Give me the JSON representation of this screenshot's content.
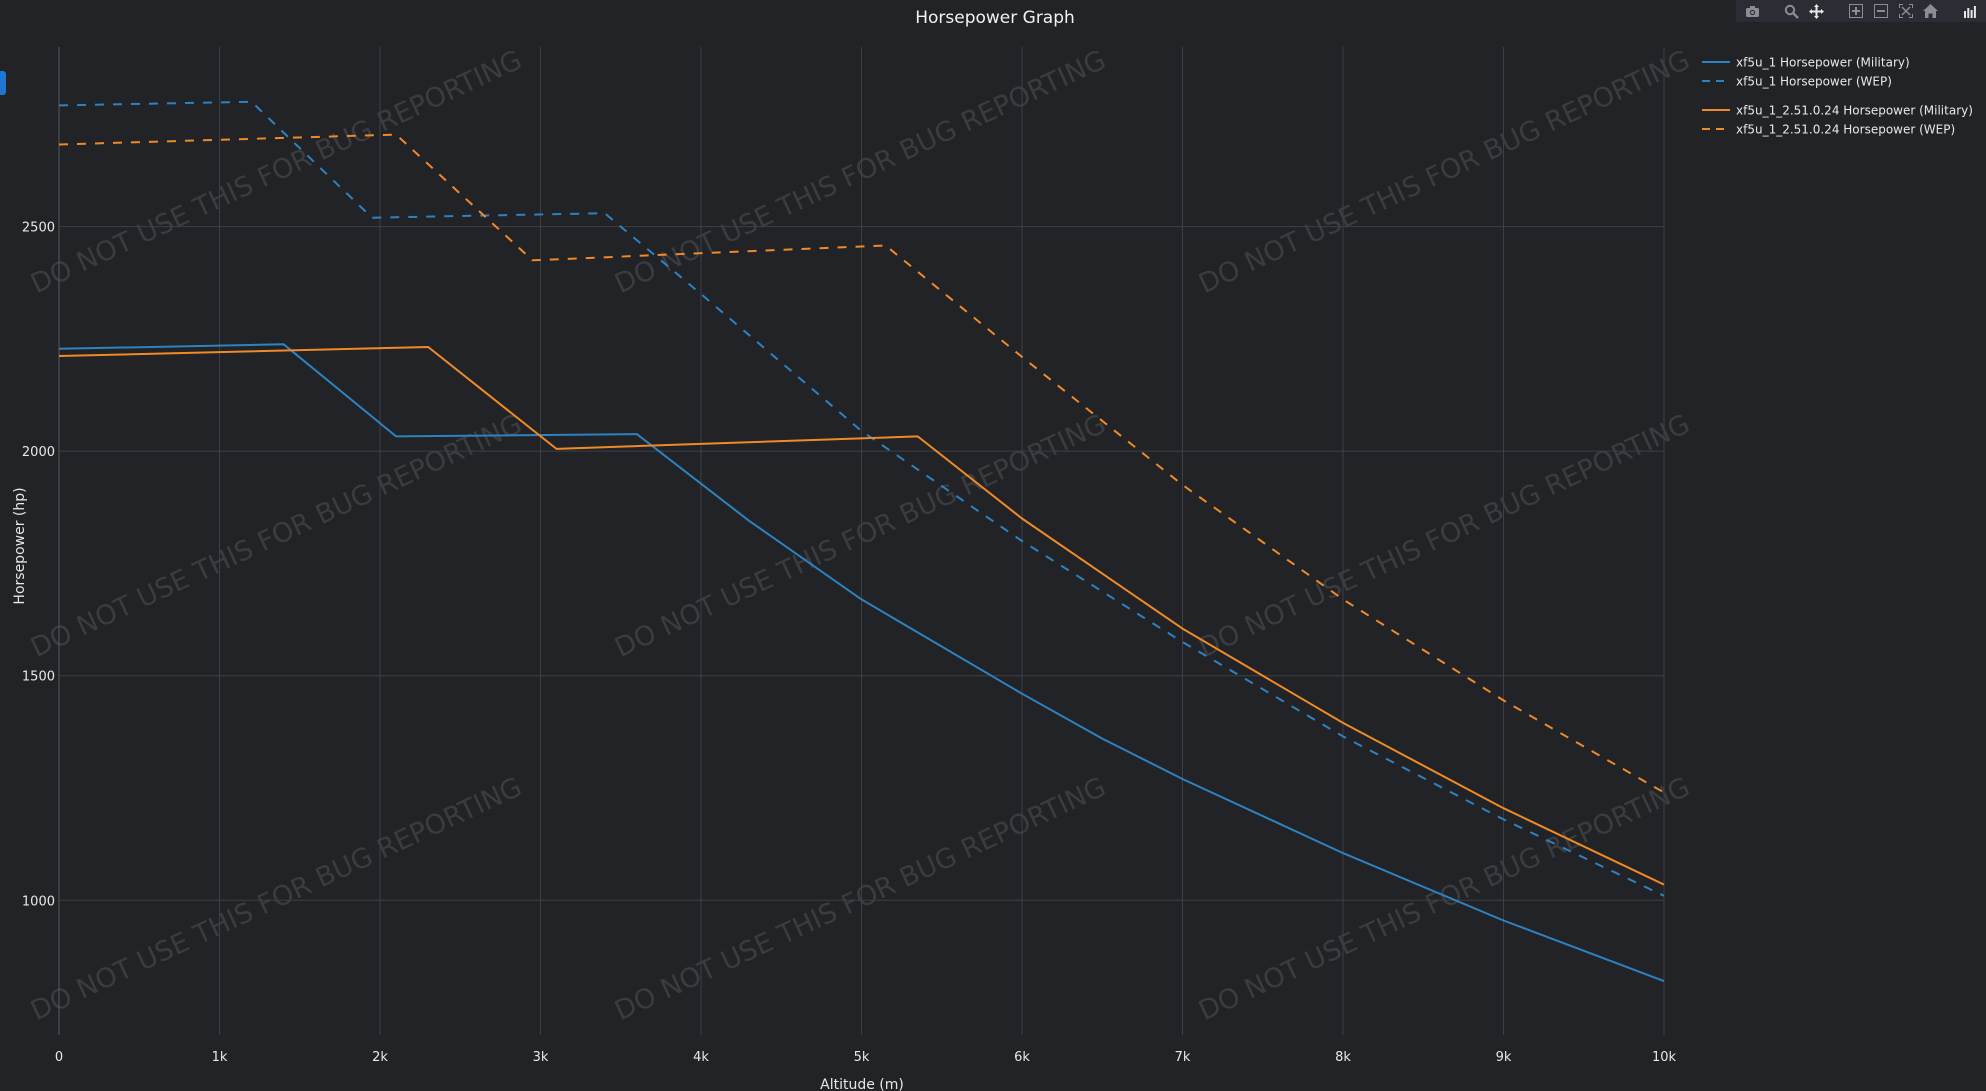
{
  "colors": {
    "background": "#212327",
    "grid": "#3d3f44",
    "axis_text": "#e8e8e8",
    "title_text": "#f2f2f2",
    "watermark": "#3a3c40",
    "blue": "#2e82c0",
    "orange": "#f08a28",
    "tab_accent": "#1f77d4"
  },
  "modebar": {
    "icons": [
      "camera-icon",
      "zoom-icon",
      "pan-icon",
      "zoom-in-icon",
      "zoom-out-icon",
      "autoscale-icon",
      "home-icon",
      "plotly-logo-icon"
    ]
  },
  "watermark_text": "DO NOT USE THIS FOR BUG REPORTING",
  "chart_data": {
    "type": "line",
    "title": "Horsepower Graph",
    "xlabel": "Altitude (m)",
    "ylabel": "Horsepower (hp)",
    "xlim": [
      0,
      10000
    ],
    "ylim": [
      700,
      2900
    ],
    "xticks": [
      0,
      1000,
      2000,
      3000,
      4000,
      5000,
      6000,
      7000,
      8000,
      9000,
      10000
    ],
    "xtick_labels": [
      "0",
      "1k",
      "2k",
      "3k",
      "4k",
      "5k",
      "6k",
      "7k",
      "8k",
      "9k",
      "10k"
    ],
    "yticks": [
      1000,
      1500,
      2000,
      2500
    ],
    "ytick_labels": [
      "1000",
      "1500",
      "2000",
      "2500"
    ],
    "grid": true,
    "legend_position": "top-right",
    "series": [
      {
        "name": "xf5u_1 Horsepower (Military)",
        "color": "#2e82c0",
        "dash": "solid",
        "x": [
          0,
          1400,
          2100,
          3600,
          4300,
          5000,
          6000,
          6500,
          7000,
          8000,
          9000,
          10000
        ],
        "y": [
          2228,
          2238,
          2033,
          2038,
          1845,
          1670,
          1460,
          1360,
          1270,
          1105,
          955,
          820
        ]
      },
      {
        "name": "xf5u_1 Horsepower (WEP)",
        "color": "#2e82c0",
        "dash": "dash",
        "x": [
          0,
          1200,
          1950,
          3400,
          4000,
          5000,
          6000,
          7000,
          8000,
          9000,
          10000
        ],
        "y": [
          2770,
          2778,
          2520,
          2530,
          2350,
          2045,
          1800,
          1575,
          1365,
          1180,
          1010
        ]
      },
      {
        "name": "xf5u_1_2.51.0.24 Horsepower (Military)",
        "color": "#f08a28",
        "dash": "solid",
        "x": [
          0,
          2300,
          3100,
          5350,
          6000,
          7000,
          8000,
          9000,
          10000
        ],
        "y": [
          2212,
          2232,
          2005,
          2033,
          1850,
          1605,
          1395,
          1205,
          1035
        ]
      },
      {
        "name": "xf5u_1_2.51.0.24 Horsepower (WEP)",
        "color": "#f08a28",
        "dash": "dash",
        "x": [
          0,
          2100,
          2950,
          5150,
          6000,
          7000,
          8000,
          9000,
          10000
        ],
        "y": [
          2683,
          2705,
          2425,
          2458,
          2210,
          1925,
          1670,
          1445,
          1240
        ]
      }
    ]
  }
}
